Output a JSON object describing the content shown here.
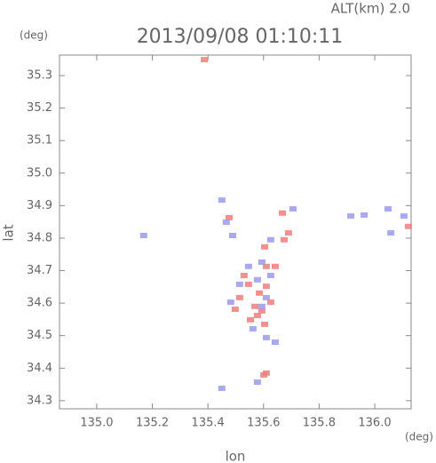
{
  "chart_data": {
    "type": "scatter",
    "title": "2013/09/08 01:10:11",
    "subtitle": "ALT(km) 2.0",
    "y_unit": "(deg)",
    "x_unit": "(deg)",
    "xlabel": "lon",
    "ylabel": "lat",
    "xlim": [
      134.866,
      136.131
    ],
    "ylim": [
      34.275,
      35.363
    ],
    "xticks": [
      {
        "value": 135,
        "label": "135.0"
      },
      135.2,
      135.4,
      135.6,
      135.8,
      {
        "value": 136,
        "label": "136.0"
      }
    ],
    "yticks": [
      34.3,
      34.4,
      34.5,
      34.6,
      34.7,
      34.8,
      34.9,
      {
        "value": 35,
        "label": "35.0"
      },
      35.1,
      35.2,
      35.3
    ],
    "series": [
      {
        "color": "#f07c7c",
        "x": [
          135.604,
          135.61,
          135.585,
          135.594,
          135.578,
          135.626,
          135.546,
          135.514,
          135.61,
          135.601,
          135.69,
          135.674,
          135.61,
          135.604,
          135.569,
          135.642,
          136.121,
          135.498,
          135.53,
          135.387,
          135.476,
          135.668,
          135.553
        ],
        "values": [
          34.773,
          34.652,
          34.631,
          34.576,
          34.562,
          34.603,
          34.658,
          34.617,
          34.385,
          34.379,
          34.816,
          34.795,
          34.713,
          34.535,
          34.59,
          34.713,
          34.836,
          34.581,
          34.685,
          35.349,
          34.863,
          34.877,
          34.549
        ]
      },
      {
        "color": "#9a9aee",
        "x": [
          136.105,
          136.058,
          136.048,
          135.962,
          135.914,
          135.489,
          135.466,
          135.594,
          135.626,
          135.578,
          135.61,
          135.594,
          135.562,
          135.61,
          135.642,
          135.514,
          135.482,
          135.546,
          135.626,
          135.45,
          135.578,
          135.45,
          135.706,
          135.169
        ],
        "values": [
          34.868,
          34.816,
          34.89,
          34.871,
          34.868,
          34.808,
          34.849,
          34.726,
          34.685,
          34.672,
          34.617,
          34.59,
          34.521,
          34.494,
          34.48,
          34.658,
          34.603,
          34.713,
          34.795,
          34.338,
          34.357,
          34.917,
          34.89,
          34.808
        ]
      }
    ]
  }
}
